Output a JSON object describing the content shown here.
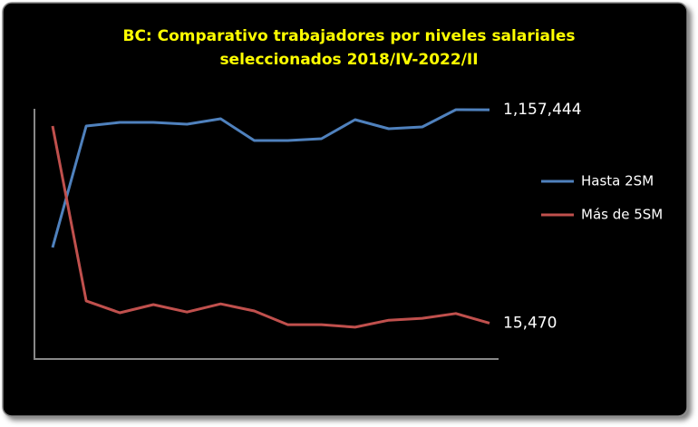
{
  "chart_data": {
    "type": "line",
    "title": [
      "BC: Comparativo trabajadores por niveles  salariales",
      "seleccionados 2018/IV-2022/II"
    ],
    "categories": [
      null,
      null,
      null,
      null,
      null,
      null,
      null,
      null,
      null,
      null,
      null,
      null,
      null,
      null
    ],
    "ylim": [
      850000,
      1170000
    ],
    "y2lim": [
      14600,
      21500
    ],
    "series": [
      {
        "name": "Hasta 2SM",
        "color": "#4f81bd",
        "values": [
          985000,
          1137100,
          1141600,
          1141600,
          1139400,
          1146200,
          1118900,
          1118900,
          1121200,
          1145000,
          1133700,
          1136000,
          1157500,
          1157444
        ],
        "value_labels": [
          null,
          null,
          null,
          null,
          null,
          null,
          null,
          null,
          null,
          null,
          null,
          null,
          null,
          "1,157,444"
        ]
      },
      {
        "name": "Más de 5SM",
        "color": "#c0504d",
        "axis": "y2",
        "values": [
          20790,
          16070,
          15750,
          15970,
          15770,
          15990,
          15800,
          15430,
          15430,
          15360,
          15550,
          15600,
          15730,
          15470
        ],
        "value_labels": [
          null,
          null,
          null,
          null,
          null,
          null,
          null,
          null,
          null,
          null,
          null,
          null,
          null,
          "15,470"
        ]
      }
    ],
    "legend": "right"
  }
}
